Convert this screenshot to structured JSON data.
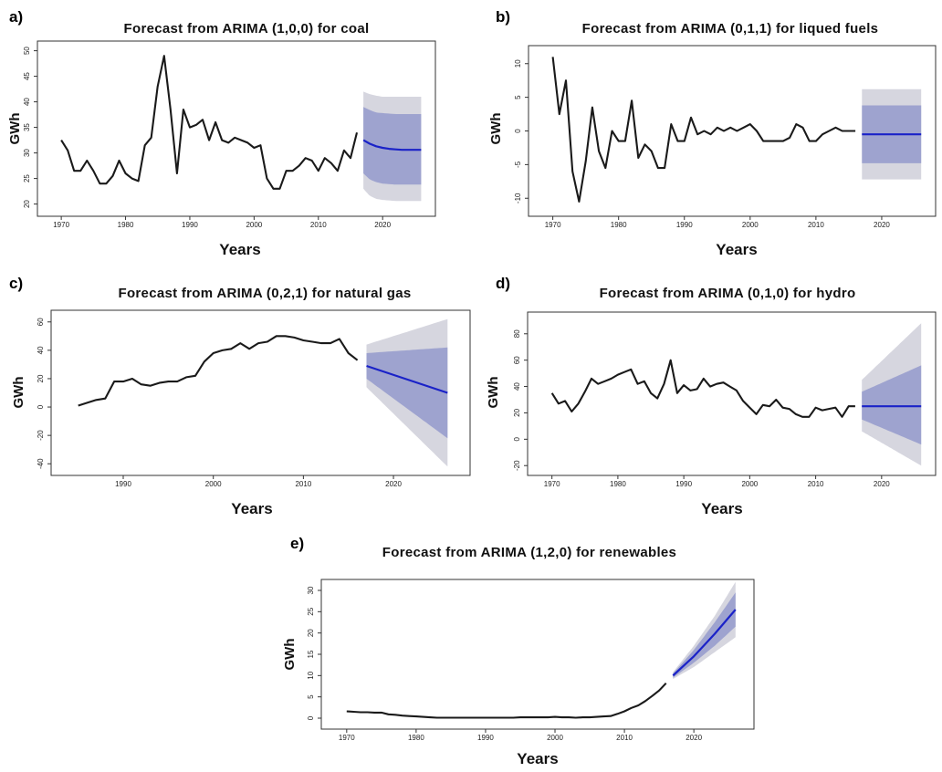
{
  "colors": {
    "history_line": "#1a1a1a",
    "forecast_line": "#1a22c8",
    "band_95": "#d6d6df",
    "band_80": "#9ea3cf",
    "frame": "#333333"
  },
  "chart_data": [
    {
      "panel": "a)",
      "type": "line",
      "title": "Forecast from ARIMA (1,0,0) for coal",
      "xlabel": "Years",
      "ylabel": "GWh",
      "xlim": [
        1967,
        2027.5
      ],
      "ylim": [
        18.5,
        51
      ],
      "xticks": [
        1970,
        1980,
        1990,
        2000,
        2010,
        2020
      ],
      "yticks": [
        20,
        25,
        30,
        35,
        40,
        45,
        50
      ],
      "grid": false,
      "history": {
        "x": [
          1970,
          1971,
          1972,
          1973,
          1974,
          1975,
          1976,
          1977,
          1978,
          1979,
          1980,
          1981,
          1982,
          1983,
          1984,
          1985,
          1986,
          1987,
          1988,
          1989,
          1990,
          1991,
          1992,
          1993,
          1994,
          1995,
          1996,
          1997,
          1998,
          1999,
          2000,
          2001,
          2002,
          2003,
          2004,
          2005,
          2006,
          2007,
          2008,
          2009,
          2010,
          2011,
          2012,
          2013,
          2014,
          2015,
          2016
        ],
        "y": [
          32.5,
          30.5,
          26.5,
          26.5,
          28.5,
          26.5,
          24,
          24,
          25.5,
          28.5,
          26,
          25,
          24.5,
          31.5,
          33,
          43,
          49,
          38.5,
          26,
          38.5,
          35,
          35.5,
          36.5,
          32.5,
          36,
          32.5,
          32,
          33,
          32.5,
          32,
          31,
          31.5,
          25,
          23,
          23,
          26.5,
          26.5,
          27.5,
          29,
          28.5,
          26.5,
          29,
          28,
          26.5,
          30.5,
          29,
          34
        ]
      },
      "forecast": {
        "x": [
          2017,
          2018,
          2019,
          2020,
          2021,
          2022,
          2023,
          2024,
          2025,
          2026
        ],
        "mean": [
          32.5,
          31.8,
          31.3,
          31.0,
          30.8,
          30.7,
          30.6,
          30.6,
          30.6,
          30.6
        ],
        "lo80": [
          26,
          24.8,
          24.3,
          24.0,
          23.9,
          23.8,
          23.8,
          23.8,
          23.8,
          23.8
        ],
        "hi80": [
          39,
          38.4,
          37.9,
          37.8,
          37.7,
          37.6,
          37.6,
          37.6,
          37.6,
          37.6
        ],
        "lo95": [
          23,
          21.6,
          21.0,
          20.8,
          20.7,
          20.6,
          20.6,
          20.6,
          20.6,
          20.6
        ],
        "hi95": [
          42,
          41.5,
          41.2,
          41.0,
          41.0,
          41.0,
          41.0,
          41.0,
          41.0,
          41.0
        ]
      }
    },
    {
      "panel": "b)",
      "type": "line",
      "title": "Forecast from ARIMA (0,1,1) for liqued fuels",
      "xlabel": "Years",
      "ylabel": "GWh",
      "xlim": [
        1967,
        2027.5
      ],
      "ylim": [
        -12,
        12
      ],
      "xticks": [
        1970,
        1980,
        1990,
        2000,
        2010,
        2020
      ],
      "yticks": [
        -10,
        -5,
        0,
        5,
        10
      ],
      "grid": false,
      "history": {
        "x": [
          1970,
          1971,
          1972,
          1973,
          1974,
          1975,
          1976,
          1977,
          1978,
          1979,
          1980,
          1981,
          1982,
          1983,
          1984,
          1985,
          1986,
          1987,
          1988,
          1989,
          1990,
          1991,
          1992,
          1993,
          1994,
          1995,
          1996,
          1997,
          1998,
          1999,
          2000,
          2001,
          2002,
          2003,
          2004,
          2005,
          2006,
          2007,
          2008,
          2009,
          2010,
          2011,
          2012,
          2013,
          2014,
          2015,
          2016
        ],
        "y": [
          11,
          2.5,
          7.5,
          -6,
          -10.5,
          -4.5,
          3.5,
          -3,
          -5.5,
          0,
          -1.5,
          -1.5,
          4.5,
          -4,
          -2,
          -3,
          -5.5,
          -5.5,
          1,
          -1.5,
          -1.5,
          2,
          -0.5,
          0,
          -0.5,
          0.5,
          0,
          0.5,
          0,
          0.5,
          1,
          0,
          -1.5,
          -1.5,
          -1.5,
          -1.5,
          -1,
          1,
          0.5,
          -1.5,
          -1.5,
          -0.5,
          0,
          0.5,
          0,
          0,
          0
        ]
      },
      "forecast": {
        "x": [
          2017,
          2026
        ],
        "mean": [
          -0.5,
          -0.5
        ],
        "lo80": [
          -4.8,
          -4.8
        ],
        "hi80": [
          3.8,
          3.8
        ],
        "lo95": [
          -7.2,
          -7.2
        ],
        "hi95": [
          6.2,
          6.2
        ]
      }
    },
    {
      "panel": "c)",
      "type": "line",
      "title": "Forecast from ARIMA (0,2,1) for natural gas",
      "xlabel": "Years",
      "ylabel": "GWh",
      "xlim": [
        1982.5,
        2028
      ],
      "ylim": [
        -45,
        65
      ],
      "xticks": [
        1990,
        2000,
        2010,
        2020
      ],
      "yticks": [
        -40,
        -20,
        0,
        20,
        40,
        60
      ],
      "grid": false,
      "history": {
        "x": [
          1985,
          1986,
          1987,
          1988,
          1989,
          1990,
          1991,
          1992,
          1993,
          1994,
          1995,
          1996,
          1997,
          1998,
          1999,
          2000,
          2001,
          2002,
          2003,
          2004,
          2005,
          2006,
          2007,
          2008,
          2009,
          2010,
          2011,
          2012,
          2013,
          2014,
          2015,
          2016
        ],
        "y": [
          1,
          3,
          5,
          6,
          18,
          18,
          20,
          16,
          15,
          17,
          18,
          18,
          21,
          22,
          32,
          38,
          40,
          41,
          45,
          41,
          45,
          46,
          50,
          50,
          49,
          47,
          46,
          45,
          45,
          48,
          38,
          33
        ]
      },
      "forecast": {
        "x": [
          2017,
          2026
        ],
        "mean": [
          29,
          10
        ],
        "lo80": [
          20,
          -22
        ],
        "hi80": [
          38,
          42
        ],
        "lo95": [
          14,
          -42
        ],
        "hi95": [
          44,
          62
        ]
      }
    },
    {
      "panel": "d)",
      "type": "line",
      "title": "Forecast from ARIMA (0,1,0) for hydro",
      "xlabel": "Years",
      "ylabel": "GWh",
      "xlim": [
        1967,
        2027.5
      ],
      "ylim": [
        -24,
        93
      ],
      "xticks": [
        1970,
        1980,
        1990,
        2000,
        2010,
        2020
      ],
      "yticks": [
        -20,
        0,
        20,
        40,
        60,
        80
      ],
      "grid": false,
      "history": {
        "x": [
          1970,
          1971,
          1972,
          1973,
          1974,
          1975,
          1976,
          1977,
          1978,
          1979,
          1980,
          1981,
          1982,
          1983,
          1984,
          1985,
          1986,
          1987,
          1988,
          1989,
          1990,
          1991,
          1992,
          1993,
          1994,
          1995,
          1996,
          1997,
          1998,
          1999,
          2000,
          2001,
          2002,
          2003,
          2004,
          2005,
          2006,
          2007,
          2008,
          2009,
          2010,
          2011,
          2012,
          2013,
          2014,
          2015,
          2016
        ],
        "y": [
          35,
          27,
          29,
          21,
          27,
          36,
          46,
          42,
          44,
          46,
          49,
          51,
          53,
          42,
          44,
          35,
          31,
          42,
          60,
          35,
          41,
          37,
          38,
          46,
          40,
          42,
          43,
          40,
          37,
          29,
          24,
          19,
          26,
          25,
          30,
          24,
          23,
          19,
          17,
          17,
          24,
          22,
          23,
          24,
          17,
          25,
          25
        ]
      },
      "forecast": {
        "x": [
          2017,
          2026
        ],
        "mean": [
          25,
          25
        ],
        "lo80": [
          15,
          -4
        ],
        "hi80": [
          36,
          56
        ],
        "lo95": [
          6,
          -20
        ],
        "hi95": [
          45,
          88
        ]
      }
    },
    {
      "panel": "e)",
      "type": "line",
      "title": "Forecast from ARIMA (1,2,0) for renewables",
      "xlabel": "Years",
      "ylabel": "GWh",
      "xlim": [
        1967,
        2028
      ],
      "ylim": [
        -1.5,
        31.5
      ],
      "xticks": [
        1970,
        1980,
        1990,
        2000,
        2010,
        2020
      ],
      "yticks": [
        0,
        5,
        10,
        15,
        20,
        25,
        30
      ],
      "grid": false,
      "history": {
        "x": [
          1970,
          1971,
          1972,
          1973,
          1974,
          1975,
          1976,
          1977,
          1978,
          1979,
          1980,
          1981,
          1982,
          1983,
          1984,
          1985,
          1986,
          1987,
          1988,
          1989,
          1990,
          1991,
          1992,
          1993,
          1994,
          1995,
          1996,
          1997,
          1998,
          1999,
          2000,
          2001,
          2002,
          2003,
          2004,
          2005,
          2006,
          2007,
          2008,
          2009,
          2010,
          2011,
          2012,
          2013,
          2014,
          2015,
          2016
        ],
        "y": [
          1.6,
          1.5,
          1.4,
          1.4,
          1.3,
          1.3,
          0.9,
          0.8,
          0.6,
          0.5,
          0.4,
          0.3,
          0.2,
          0.1,
          0.1,
          0.1,
          0.1,
          0.1,
          0.1,
          0.1,
          0.1,
          0.1,
          0.1,
          0.1,
          0.1,
          0.2,
          0.2,
          0.2,
          0.2,
          0.2,
          0.3,
          0.2,
          0.2,
          0.1,
          0.2,
          0.2,
          0.3,
          0.4,
          0.5,
          1.0,
          1.6,
          2.4,
          3.0,
          4.0,
          5.2,
          6.5,
          8.2
        ]
      },
      "forecast": {
        "x": [
          2017,
          2020,
          2023,
          2026
        ],
        "mean": [
          10,
          14.5,
          19.8,
          25.5
        ],
        "lo80": [
          9.5,
          13,
          17,
          21.5
        ],
        "hi80": [
          10.5,
          16,
          22.5,
          29.5
        ],
        "lo95": [
          9.2,
          12,
          15.5,
          19
        ],
        "hi95": [
          10.8,
          17,
          24,
          32
        ]
      }
    }
  ]
}
